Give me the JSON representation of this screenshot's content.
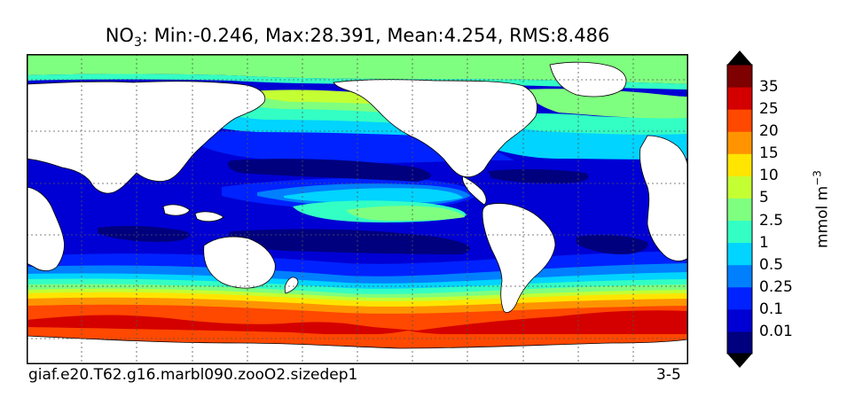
{
  "title": {
    "species": "NO",
    "subscript": "3",
    "stats": ": Min:-0.246, Max:28.391, Mean:4.254, RMS:8.486"
  },
  "footer": {
    "run_name": "giaf.e20.T62.g16.marbl090.zooO2.sizedep1",
    "season": "3-5"
  },
  "colorbar": {
    "units_base": "mmol m",
    "units_exp": "−3",
    "levels": [
      "0.01",
      "0.1",
      "0.25",
      "0.5",
      "1",
      "2.5",
      "5",
      "10",
      "15",
      "20",
      "25",
      "35"
    ],
    "colors": [
      "#00007f",
      "#0000d4",
      "#0022ff",
      "#0080ff",
      "#00d4ff",
      "#33ffc4",
      "#7fff7f",
      "#c4ff33",
      "#ffe500",
      "#ff9400",
      "#ff4800",
      "#d40000",
      "#7f0000"
    ],
    "extend_low_color": "#000000",
    "extend_high_color": "#000000"
  },
  "map": {
    "projection": "global cylindrical, dateline centered near 180°",
    "gridlines": "dotted",
    "land_color": "#ffffff",
    "coastline_color": "#000000"
  }
}
